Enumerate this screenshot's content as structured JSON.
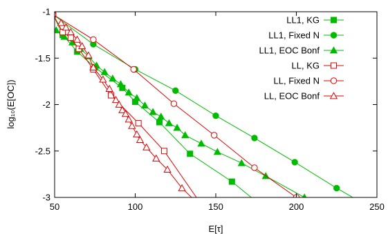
{
  "chart_data": {
    "type": "line",
    "xlabel": "E[τ]",
    "ylabel": "log₁₀(E[OC])",
    "xlim": [
      50,
      250
    ],
    "ylim": [
      -3,
      -1
    ],
    "xticks": [
      50,
      100,
      150,
      200,
      250
    ],
    "yticks": [
      -3,
      -2.5,
      -2,
      -1.5,
      -1
    ],
    "xtick_labels": [
      "50",
      "100",
      "150",
      "200",
      "250"
    ],
    "ytick_labels": [
      "-3",
      "-2.5",
      "-2",
      "-1.5",
      "-1"
    ],
    "legend_position": "top-right",
    "grid": false,
    "series": [
      {
        "name": "LL1, KG",
        "color": "#00bb00",
        "marker": "square-filled",
        "points": [
          [
            49,
            -1.03
          ],
          [
            55,
            -1.25
          ],
          [
            64,
            -1.43
          ],
          [
            75,
            -1.6
          ],
          [
            92,
            -1.82
          ],
          [
            100,
            -1.97
          ],
          [
            115,
            -2.19
          ],
          [
            134,
            -2.53
          ],
          [
            160,
            -2.83
          ]
        ],
        "line_extends_to": [
          172,
          -3
        ]
      },
      {
        "name": "LL1, Fixed N",
        "color": "#00bb00",
        "marker": "circle-filled",
        "points": [
          [
            49,
            -1.03
          ],
          [
            74,
            -1.35
          ],
          [
            100,
            -1.62
          ],
          [
            125,
            -1.85
          ],
          [
            150,
            -2.12
          ],
          [
            174,
            -2.36
          ],
          [
            199,
            -2.62
          ],
          [
            225,
            -2.9
          ]
        ],
        "line_extends_to": [
          235,
          -3
        ]
      },
      {
        "name": "LL1, EOC Bonf",
        "color": "#00bb00",
        "marker": "triangle-filled",
        "points": [
          [
            51,
            -1.2
          ],
          [
            56,
            -1.27
          ],
          [
            61,
            -1.33
          ],
          [
            66,
            -1.4
          ],
          [
            71,
            -1.48
          ],
          [
            76,
            -1.58
          ],
          [
            81,
            -1.65
          ],
          [
            86,
            -1.72
          ],
          [
            91,
            -1.78
          ],
          [
            96,
            -1.87
          ],
          [
            101,
            -1.93
          ],
          [
            106,
            -2.01
          ],
          [
            111,
            -2.08
          ],
          [
            116,
            -2.13
          ],
          [
            121,
            -2.2
          ],
          [
            126,
            -2.25
          ],
          [
            131,
            -2.33
          ],
          [
            141,
            -2.42
          ],
          [
            151,
            -2.51
          ],
          [
            166,
            -2.63
          ],
          [
            181,
            -2.77
          ],
          [
            205,
            -3.0
          ]
        ]
      },
      {
        "name": "LL, KG",
        "color": "#dd0000",
        "marker": "square-open",
        "points": [
          [
            49,
            -1.03
          ],
          [
            55,
            -1.22
          ],
          [
            60,
            -1.28
          ],
          [
            65,
            -1.4
          ],
          [
            74,
            -1.62
          ],
          [
            85,
            -1.9
          ],
          [
            102,
            -2.2
          ],
          [
            118,
            -2.5
          ]
        ],
        "line_extends_to": [
          138,
          -3
        ]
      },
      {
        "name": "LL, Fixed N",
        "color": "#dd0000",
        "marker": "circle-open",
        "points": [
          [
            49,
            -1.03
          ],
          [
            74,
            -1.3
          ],
          [
            99,
            -1.62
          ],
          [
            124,
            -1.99
          ],
          [
            149,
            -2.33
          ],
          [
            174,
            -2.68
          ],
          [
            200,
            -3.0
          ]
        ]
      },
      {
        "name": "LL, EOC Bonf",
        "color": "#dd0000",
        "marker": "triangle-open",
        "points": [
          [
            54,
            -1.12
          ],
          [
            57,
            -1.17
          ],
          [
            60,
            -1.22
          ],
          [
            64,
            -1.3
          ],
          [
            67,
            -1.37
          ],
          [
            71,
            -1.47
          ],
          [
            74,
            -1.6
          ],
          [
            80,
            -1.73
          ],
          [
            84,
            -1.83
          ],
          [
            88,
            -1.95
          ],
          [
            90,
            -2.0
          ],
          [
            92,
            -2.06
          ],
          [
            94,
            -2.1
          ],
          [
            96,
            -2.16
          ],
          [
            98,
            -2.23
          ],
          [
            101,
            -2.32
          ],
          [
            103,
            -2.38
          ],
          [
            107,
            -2.46
          ],
          [
            113,
            -2.58
          ],
          [
            120,
            -2.7
          ],
          [
            129,
            -2.9
          ]
        ],
        "line_extends_to": [
          135,
          -3
        ]
      }
    ]
  }
}
